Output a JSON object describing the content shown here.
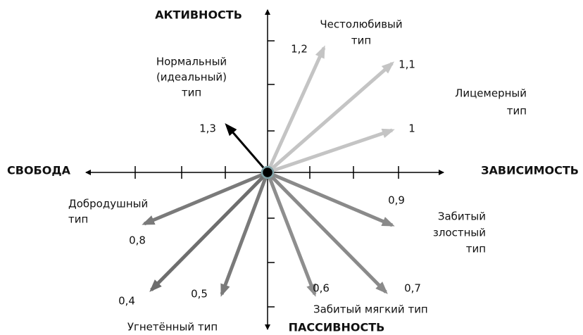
{
  "axes": {
    "top": "АКТИВНОСТЬ",
    "bottom": "ПАССИВНОСТЬ",
    "left": "СВОБОДА",
    "right": "ЗАВИСИМОСТЬ"
  },
  "arrows": [
    {
      "label": "1,2",
      "color": "#c4c4c4"
    },
    {
      "label": "1,1",
      "color": "#c4c4c4"
    },
    {
      "label": "1",
      "color": "#c4c4c4"
    },
    {
      "label": "1,3",
      "color": "#000000"
    },
    {
      "label": "0,9",
      "color": "#8a8a8a"
    },
    {
      "label": "0,8",
      "color": "#7a7a7a"
    },
    {
      "label": "0,4",
      "color": "#6e6e6e"
    },
    {
      "label": "0,5",
      "color": "#7a7a7a"
    },
    {
      "label": "0,6",
      "color": "#8e8e8e"
    },
    {
      "label": "0,7",
      "color": "#8a8a8a"
    }
  ],
  "types": [
    {
      "lines": [
        "Честолюбивый",
        "тип"
      ]
    },
    {
      "lines": [
        "Нормальный",
        "(идеальный)",
        "тип"
      ]
    },
    {
      "lines": [
        "Лицемерный",
        "тип"
      ]
    },
    {
      "lines": [
        "Добродушный",
        "тип"
      ]
    },
    {
      "lines": [
        "Забитый",
        "злостный",
        "тип"
      ]
    },
    {
      "lines": [
        "Забитый мягкий тип"
      ]
    },
    {
      "lines": [
        "Угнетённый тип"
      ]
    }
  ]
}
